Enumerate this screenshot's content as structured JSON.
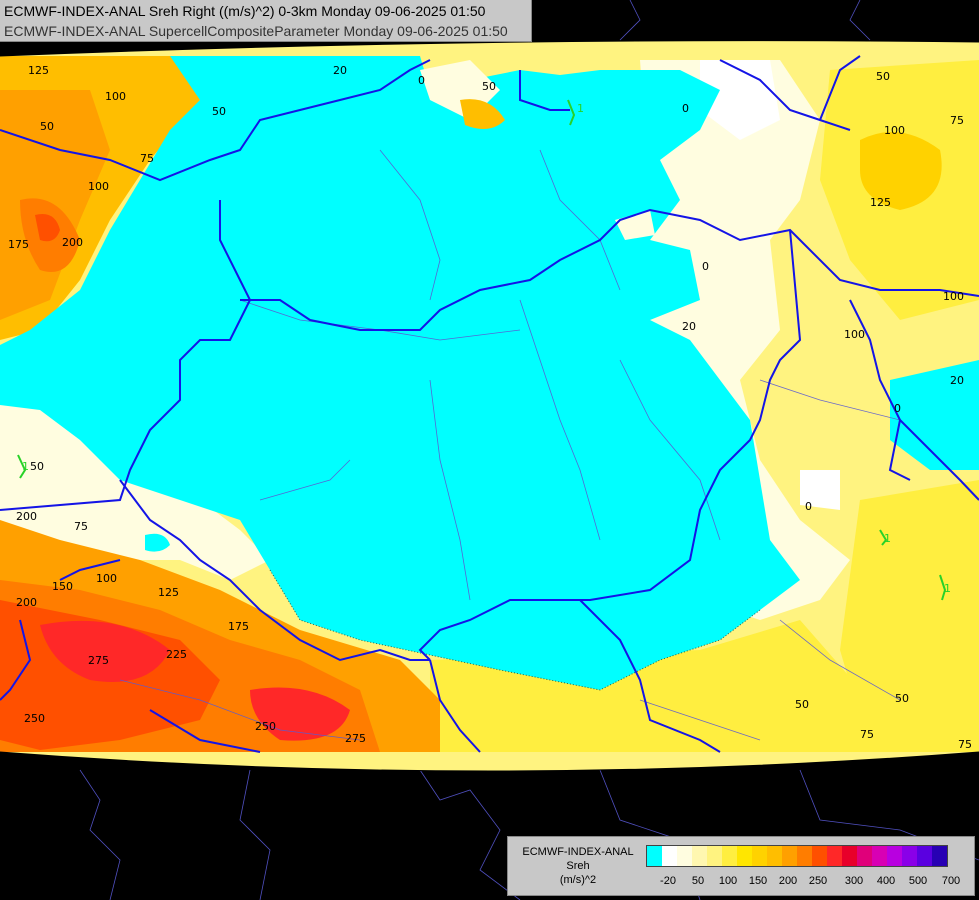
{
  "header": {
    "line1": "ECMWF-INDEX-ANAL Sreh Right ((m/s)^2) 0-3km Monday 09-06-2025 01:50",
    "line2": "ECMWF-INDEX-ANAL SupercellCompositeParameter Monday 09-06-2025 01:50"
  },
  "legend": {
    "model": "ECMWF-INDEX-ANAL",
    "parameter": "Sreh",
    "unit": "(m/s)^2",
    "colors": [
      "#00ffff",
      "#ffffff",
      "#fffde0",
      "#fff7b0",
      "#fff380",
      "#ffee40",
      "#ffe600",
      "#ffd200",
      "#ffbe00",
      "#ffa000",
      "#ff7d00",
      "#ff5000",
      "#ff2828",
      "#e8002a",
      "#e0007a",
      "#d800b4",
      "#b800e0",
      "#8a00e8",
      "#5a00e0",
      "#2800b4"
    ],
    "ticks": [
      "-20",
      "50",
      "100",
      "150",
      "200",
      "250",
      "300",
      "400",
      "500",
      "700"
    ]
  },
  "contour_labels": [
    "125",
    "100",
    "50",
    "75",
    "100",
    "175",
    "200",
    "20",
    "0",
    "50",
    "50",
    "0",
    "50",
    "100",
    "125",
    "75",
    "100",
    "100",
    "0",
    "20",
    "20",
    "0",
    "0",
    "50",
    "200",
    "75",
    "100",
    "150",
    "200",
    "125",
    "175",
    "225",
    "275",
    "250",
    "250",
    "275",
    "50",
    "50",
    "75",
    "75"
  ],
  "overlay_marks": [
    "1",
    "1",
    "1",
    "1"
  ]
}
